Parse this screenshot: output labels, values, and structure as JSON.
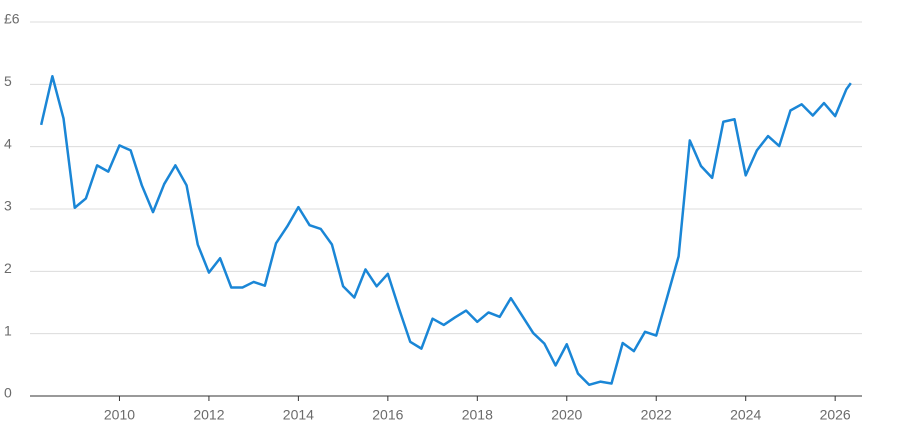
{
  "chart_data": {
    "type": "line",
    "x": [
      2008.25,
      2008.5,
      2008.75,
      2009,
      2009.25,
      2009.5,
      2009.75,
      2010,
      2010.25,
      2010.5,
      2010.75,
      2011,
      2011.25,
      2011.5,
      2011.75,
      2012,
      2012.25,
      2012.5,
      2012.75,
      2013,
      2013.25,
      2013.5,
      2013.75,
      2014,
      2014.25,
      2014.5,
      2014.75,
      2015,
      2015.25,
      2015.5,
      2015.75,
      2016,
      2016.25,
      2016.5,
      2016.75,
      2017,
      2017.25,
      2017.5,
      2017.75,
      2018,
      2018.25,
      2018.5,
      2018.75,
      2019,
      2019.25,
      2019.5,
      2019.75,
      2020,
      2020.25,
      2020.5,
      2020.75,
      2021,
      2021.25,
      2021.5,
      2021.75,
      2022,
      2022.25,
      2022.5,
      2022.75,
      2023,
      2023.25,
      2023.5,
      2023.75,
      2024,
      2024.25,
      2024.5,
      2024.75,
      2025,
      2025.25,
      2025.5,
      2025.75,
      2026,
      2026.25,
      2026.35
    ],
    "series": [
      {
        "color": "#1a86d6",
        "values": [
          4.35,
          5.13,
          4.45,
          3.02,
          3.17,
          3.7,
          3.6,
          4.02,
          3.94,
          3.38,
          2.95,
          3.4,
          3.7,
          3.38,
          2.43,
          1.98,
          2.21,
          1.74,
          1.74,
          1.83,
          1.77,
          2.45,
          2.72,
          3.03,
          2.74,
          2.68,
          2.43,
          1.76,
          1.58,
          2.03,
          1.76,
          1.96,
          1.4,
          0.87,
          0.76,
          1.24,
          1.14,
          1.26,
          1.37,
          1.19,
          1.34,
          1.27,
          1.57,
          1.29,
          1.01,
          0.84,
          0.49,
          0.83,
          0.36,
          0.18,
          0.23,
          0.2,
          0.85,
          0.72,
          1.03,
          0.97,
          1.6,
          2.24,
          4.1,
          3.69,
          3.5,
          4.4,
          4.44,
          3.54,
          3.94,
          4.17,
          4.01,
          4.58,
          4.68,
          4.5,
          4.7,
          4.49,
          4.92,
          5.02
        ]
      }
    ],
    "xlim": [
      2008,
      2026.6
    ],
    "xticks": [
      2010,
      2012,
      2014,
      2016,
      2018,
      2020,
      2022,
      2024,
      2026
    ],
    "ylim": [
      0,
      6
    ],
    "yticks": [
      0,
      1,
      2,
      3,
      4,
      5,
      {
        "value": 6,
        "label": "£6"
      }
    ],
    "grid": true
  }
}
